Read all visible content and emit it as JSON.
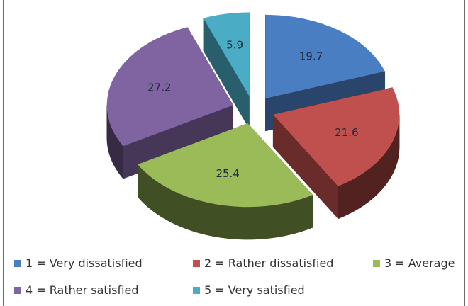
{
  "chart_data": {
    "type": "pie",
    "title": "",
    "categories": [
      "1 = Very dissatisfied",
      "2 = Rather dissatisfied",
      "3 = Average",
      "4 = Rather satisfied",
      "5 = Very satisfied"
    ],
    "values": [
      19.7,
      21.6,
      25.4,
      27.2,
      5.9
    ],
    "data_labels": [
      "19.7",
      "21.6",
      "25.4",
      "27.2",
      "5.9"
    ],
    "colors": [
      "#4a7ec2",
      "#c0504d",
      "#9bbb59",
      "#8064a2",
      "#4bacc6"
    ],
    "exploded": true,
    "three_d": true,
    "legend_position": "bottom"
  }
}
